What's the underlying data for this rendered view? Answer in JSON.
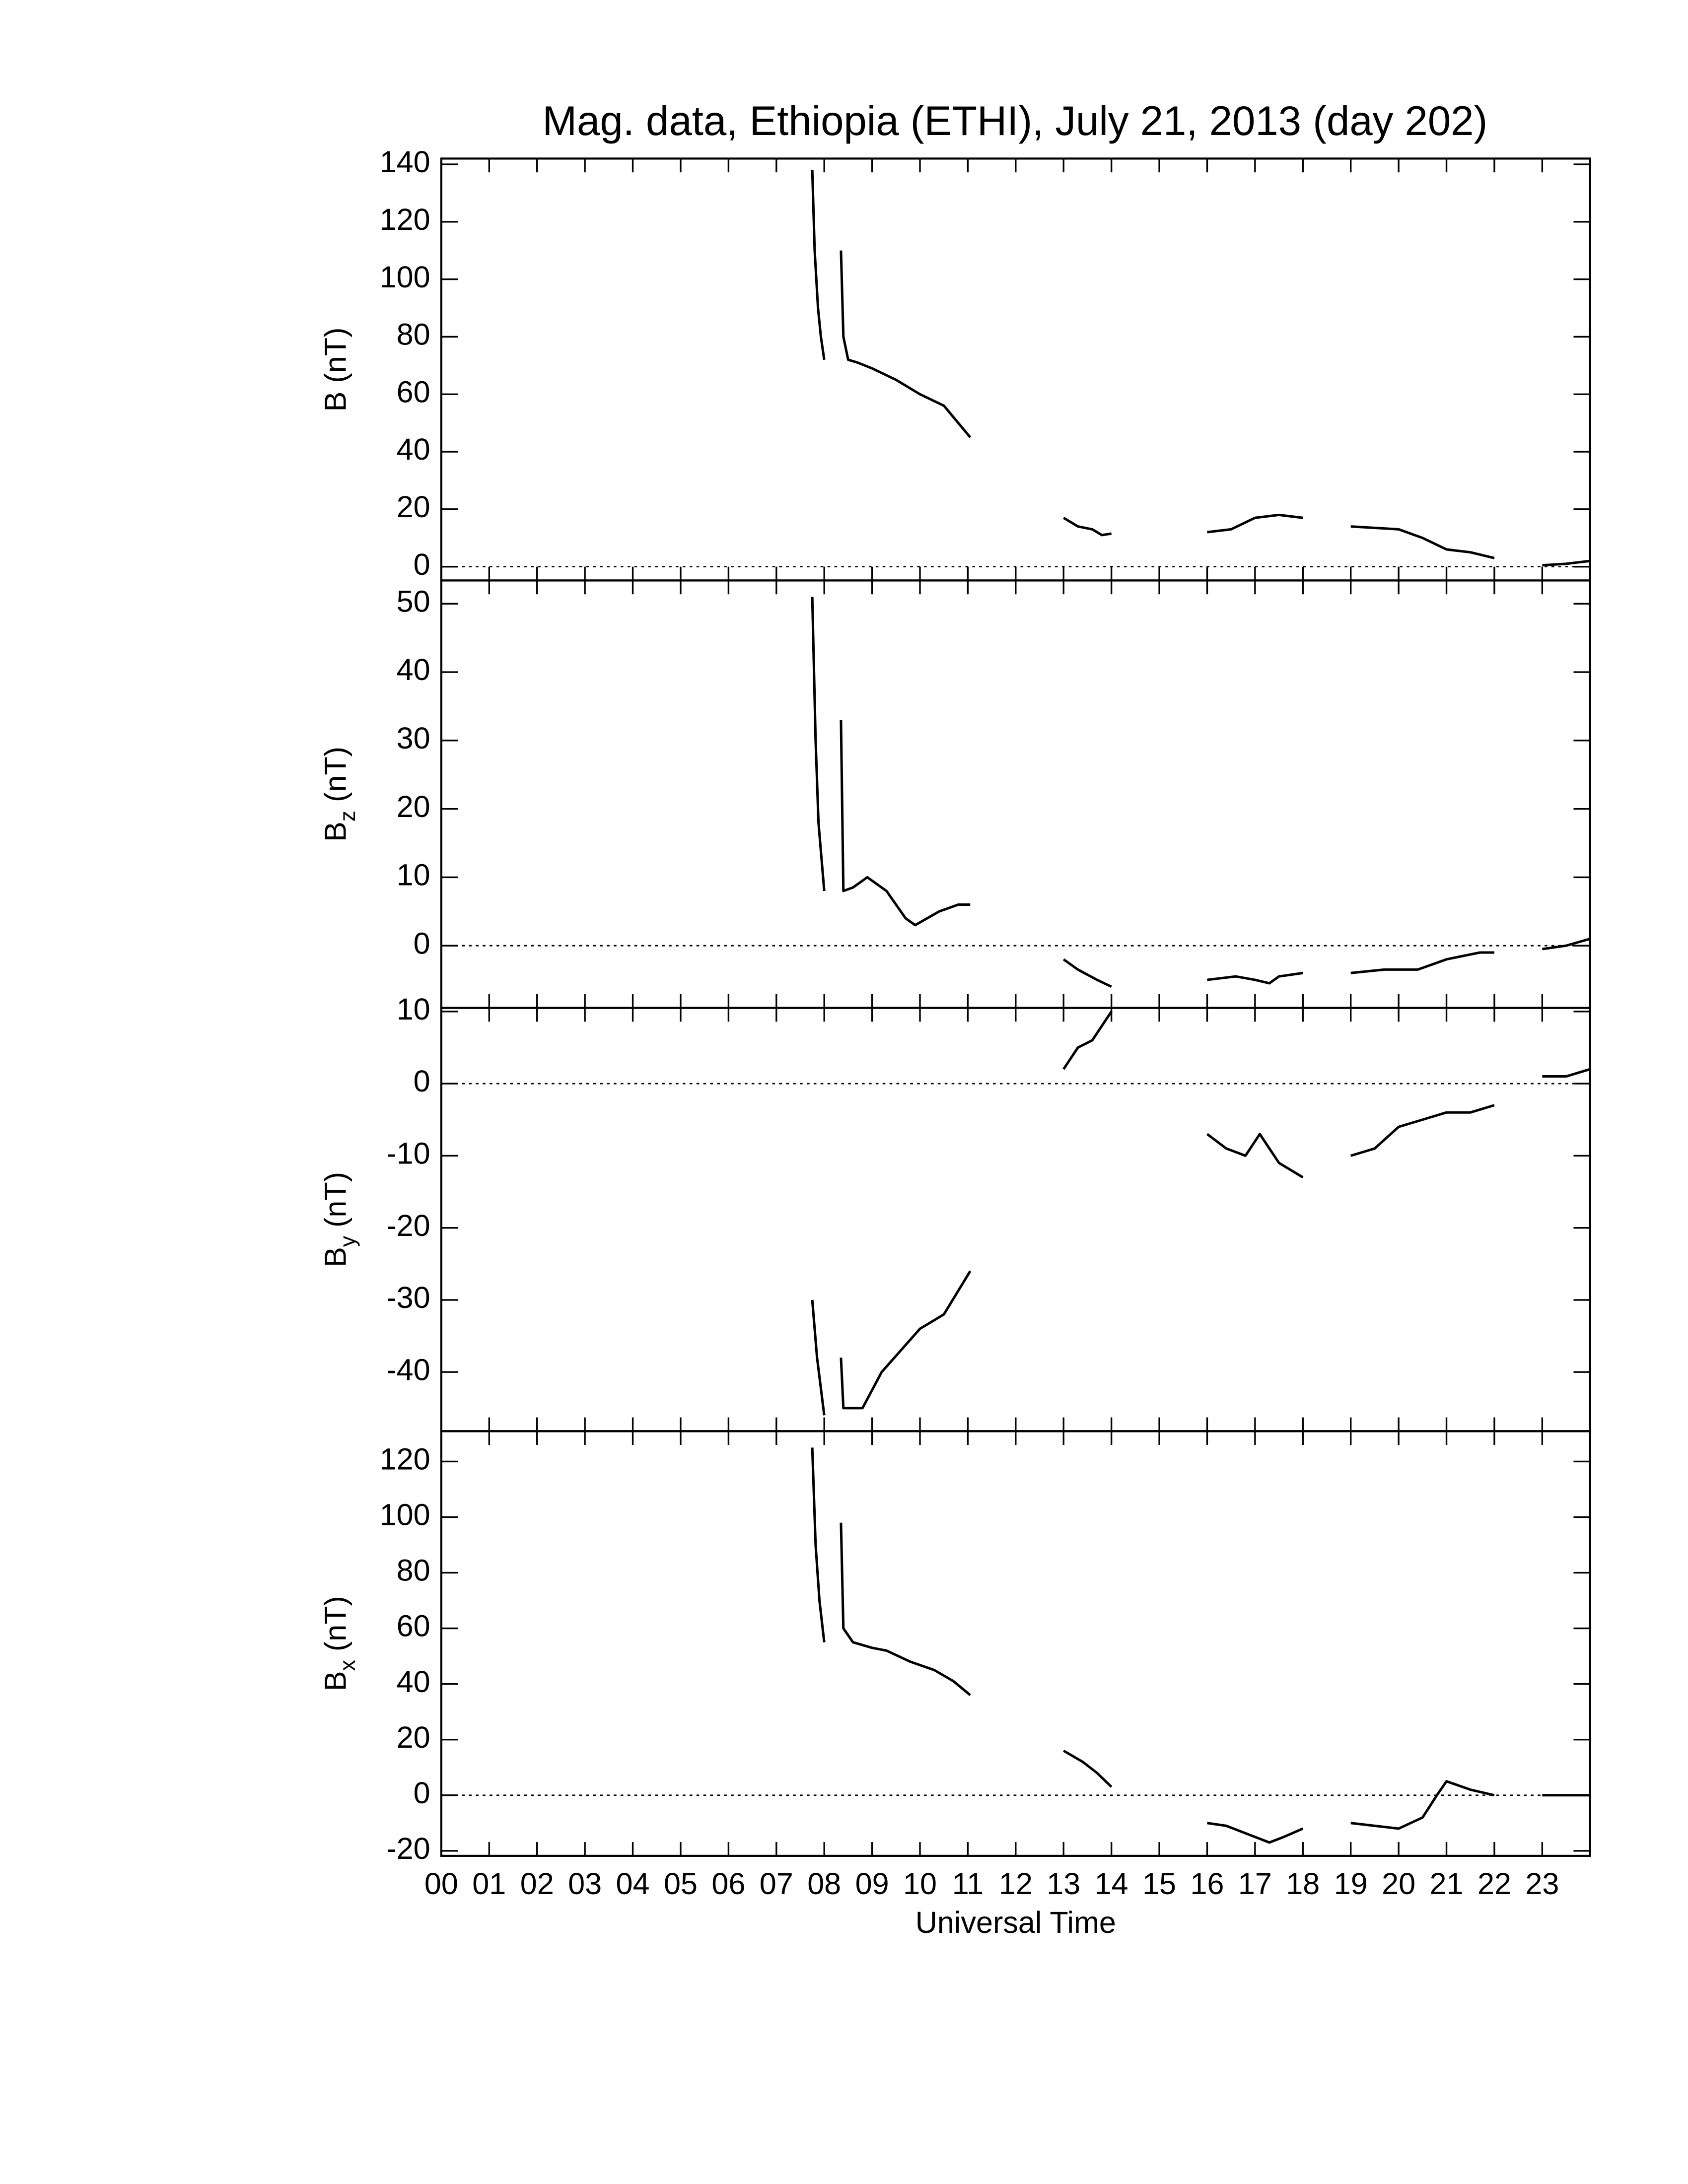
{
  "chart_data": [
    {
      "type": "line",
      "title": "Mag. data, Ethiopia (ETHI), July 21, 2013 (day 202)",
      "ylabel": "B",
      "ylabel_sub": null,
      "ylabel_unit": "(nT)",
      "xlim": [
        0,
        24
      ],
      "ylim": [
        -4.8,
        142
      ],
      "yticks": [
        0,
        20,
        40,
        60,
        80,
        100,
        120,
        140
      ],
      "zero_line": true,
      "color": "#000000",
      "x": [
        7.75,
        7.8,
        7.87,
        7.93,
        8.0,
        8.2,
        8.35,
        8.4,
        8.5,
        8.7,
        9.0,
        9.5,
        10.0,
        10.5,
        10.8,
        11.05,
        12.0,
        13.0,
        13.3,
        13.6,
        13.8,
        14.0,
        15.0,
        16.0,
        16.5,
        17.0,
        17.5,
        18.0,
        18.5,
        19.0,
        19.5,
        20.0,
        20.5,
        21.0,
        21.5,
        22.0,
        22.5,
        23.0,
        23.5,
        24.0
      ],
      "values": [
        138,
        110,
        90,
        80,
        72,
        null,
        110,
        80,
        72,
        71,
        69,
        65,
        60,
        56,
        50,
        45,
        null,
        17,
        14,
        13,
        11,
        11.5,
        null,
        12,
        13,
        17,
        18,
        17,
        null,
        14,
        13.5,
        13,
        10,
        6,
        5,
        3,
        null,
        0.5,
        1,
        2
      ]
    },
    {
      "type": "line",
      "ylabel": "B",
      "ylabel_sub": "z",
      "ylabel_unit": "(nT)",
      "xlim": [
        0,
        24
      ],
      "ylim": [
        -9.1,
        53.4
      ],
      "yticks": [
        0,
        10,
        20,
        30,
        40,
        50
      ],
      "zero_line": true,
      "color": "#000000",
      "x": [
        7.75,
        7.82,
        7.88,
        8.0,
        8.2,
        8.35,
        8.4,
        8.6,
        8.9,
        9.3,
        9.7,
        9.9,
        10.4,
        10.8,
        11.05,
        12.0,
        13.0,
        13.3,
        13.7,
        14.0,
        15.0,
        16.0,
        16.6,
        17.0,
        17.3,
        17.5,
        18.0,
        18.5,
        19.0,
        19.7,
        20.4,
        21.0,
        21.7,
        22.0,
        22.5,
        23.0,
        23.5,
        24.0
      ],
      "values": [
        51,
        30,
        18,
        8,
        null,
        33,
        8,
        8.5,
        10,
        8,
        4,
        3,
        5,
        6,
        6,
        null,
        -2,
        -3.5,
        -5,
        -6,
        null,
        -5,
        -4.5,
        -5,
        -5.5,
        -4.5,
        -4,
        null,
        -4,
        -3.5,
        -3.5,
        -2,
        -1,
        -1,
        null,
        -0.5,
        0,
        1
      ]
    },
    {
      "type": "line",
      "ylabel": "B",
      "ylabel_sub": "y",
      "ylabel_unit": "(nT)",
      "xlim": [
        0,
        24
      ],
      "ylim": [
        -48.2,
        10.5
      ],
      "yticks": [
        -40,
        -30,
        -20,
        -10,
        0,
        10
      ],
      "zero_line": true,
      "color": "#000000",
      "x": [
        7.75,
        7.85,
        8.0,
        8.2,
        8.35,
        8.4,
        8.8,
        9.2,
        9.6,
        10.0,
        10.5,
        11.05,
        12.0,
        13.0,
        13.3,
        13.6,
        14.0,
        15.0,
        16.0,
        16.4,
        16.8,
        17.1,
        17.5,
        18.0,
        18.5,
        19.0,
        19.5,
        20.0,
        20.5,
        21.0,
        21.5,
        22.0,
        22.5,
        23.0,
        23.5,
        24.0
      ],
      "values": [
        -30,
        -38,
        -46,
        null,
        -38,
        -45,
        -45,
        -40,
        -37,
        -34,
        -32,
        -26,
        null,
        2,
        5,
        6,
        10,
        null,
        -7,
        -9,
        -10,
        -7,
        -11,
        -13,
        null,
        -10,
        -9,
        -6,
        -5,
        -4,
        -4,
        -3,
        null,
        1,
        1,
        2
      ]
    },
    {
      "type": "line",
      "ylabel": "B",
      "ylabel_sub": "x",
      "ylabel_unit": "(nT)",
      "xlabel": "Universal Time",
      "xlim": [
        0,
        24
      ],
      "ylim": [
        -21.8,
        130.9
      ],
      "yticks": [
        -20,
        0,
        20,
        40,
        60,
        80,
        100,
        120
      ],
      "zero_line": true,
      "color": "#000000",
      "xticks": [
        {
          "value": 0,
          "label": "00"
        },
        {
          "value": 1,
          "label": "01"
        },
        {
          "value": 2,
          "label": "02"
        },
        {
          "value": 3,
          "label": "03"
        },
        {
          "value": 4,
          "label": "04"
        },
        {
          "value": 5,
          "label": "05"
        },
        {
          "value": 6,
          "label": "06"
        },
        {
          "value": 7,
          "label": "07"
        },
        {
          "value": 8,
          "label": "08"
        },
        {
          "value": 9,
          "label": "09"
        },
        {
          "value": 10,
          "label": "10"
        },
        {
          "value": 11,
          "label": "11"
        },
        {
          "value": 12,
          "label": "12"
        },
        {
          "value": 13,
          "label": "13"
        },
        {
          "value": 14,
          "label": "14"
        },
        {
          "value": 15,
          "label": "15"
        },
        {
          "value": 16,
          "label": "16"
        },
        {
          "value": 17,
          "label": "17"
        },
        {
          "value": 18,
          "label": "18"
        },
        {
          "value": 19,
          "label": "19"
        },
        {
          "value": 20,
          "label": "20"
        },
        {
          "value": 21,
          "label": "21"
        },
        {
          "value": 22,
          "label": "22"
        },
        {
          "value": 23,
          "label": "23"
        }
      ],
      "x": [
        7.75,
        7.82,
        7.9,
        8.0,
        8.2,
        8.35,
        8.4,
        8.6,
        9.0,
        9.3,
        9.8,
        10.3,
        10.7,
        11.05,
        12.0,
        13.0,
        13.4,
        13.7,
        14.0,
        15.0,
        16.0,
        16.4,
        17.0,
        17.3,
        17.6,
        18.0,
        18.5,
        19.0,
        19.5,
        20.0,
        20.5,
        20.8,
        21.0,
        21.5,
        22.0,
        22.5,
        23.0,
        23.5,
        24.0
      ],
      "values": [
        125,
        90,
        70,
        55,
        null,
        98,
        60,
        55,
        53,
        52,
        48,
        45,
        41,
        36,
        null,
        16,
        12,
        8,
        3,
        null,
        -10,
        -11,
        -15,
        -17,
        -15,
        -12,
        null,
        -10,
        -11,
        -12,
        -8,
        0,
        5,
        2,
        0,
        null,
        0,
        0,
        0
      ]
    }
  ]
}
